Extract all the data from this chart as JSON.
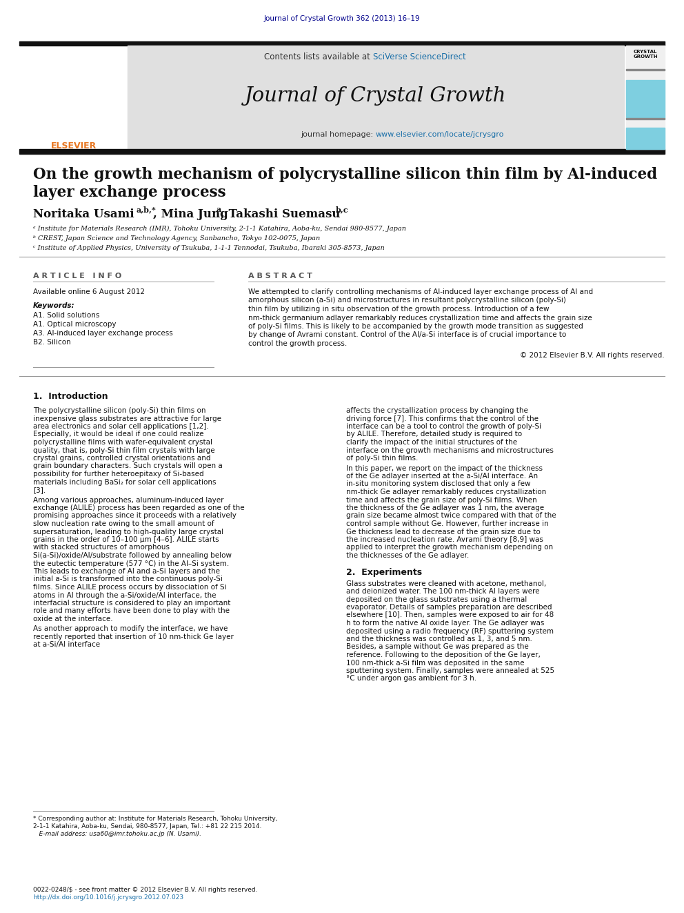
{
  "journal_ref": "Journal of Crystal Growth 362 (2013) 16–19",
  "journal_ref_color": "#00008B",
  "header_bg": "#E0E0E0",
  "header_text": "Contents lists available at ",
  "sciverse_text": "SciVerse ScienceDirect",
  "sciverse_color": "#1a6fa8",
  "journal_name": "Journal of Crystal Growth",
  "journal_homepage_label": "journal homepage: ",
  "journal_url": "www.elsevier.com/locate/jcrysgro",
  "journal_url_color": "#1a6fa8",
  "title_line1": "On the growth mechanism of polycrystalline silicon thin film by Al-induced",
  "title_line2": "layer exchange process",
  "author1": "Noritaka Usami",
  "author1_sup": "a,b,*",
  "author2": ", Mina Jung",
  "author2_sup": "a",
  "author3": ", Takashi Suemasu",
  "author3_sup": "b,c",
  "affil_a": "ᵃ Institute for Materials Research (IMR), Tohoku University, 2-1-1 Katahira, Aoba-ku, Sendai 980-8577, Japan",
  "affil_b": "ᵇ CREST, Japan Science and Technology Agency, Sanbancho, Tokyo 102-0075, Japan",
  "affil_c": "ᶜ Institute of Applied Physics, University of Tsukuba, 1-1-1 Tennodai, Tsukuba, Ibaraki 305-8573, Japan",
  "article_info_title": "A R T I C L E   I N F O",
  "abstract_title": "A B S T R A C T",
  "available_online": "Available online 6 August 2012",
  "keywords_title": "Keywords:",
  "keywords": [
    "A1. Solid solutions",
    "A1. Optical microscopy",
    "A3. Al-induced layer exchange process",
    "B2. Silicon"
  ],
  "abstract_text": "We attempted to clarify controlling mechanisms of Al-induced layer exchange process of Al and amorphous silicon (a-Si) and microstructures in resultant polycrystalline silicon (poly-Si) thin film by utilizing in situ observation of the growth process. Introduction of a few nm-thick germanium adlayer remarkably reduces crystallization time and affects the grain size of poly-Si films. This is likely to be accompanied by the growth mode transition as suggested by change of Avrami constant. Control of the Al/a-Si interface is of crucial importance to control the growth process.",
  "copyright_text": "© 2012 Elsevier B.V. All rights reserved.",
  "section1_title": "1.  Introduction",
  "col1_p1": "    The polycrystalline silicon (poly-Si) thin films on inexpensive glass substrates are attractive for large area electronics and solar cell applications [1,2]. Especially, it would be ideal if one could realize polycrystalline films with wafer-equivalent crystal quality, that is, poly-Si thin film crystals with large crystal grains, controlled crystal orientations and grain boundary characters. Such crystals will open a possibility for further heteroepitaxy of Si-based materials including BaSi₂ for solar cell applications [3].",
  "col1_p2": "    Among various approaches, aluminum-induced layer exchange (ALILE) process has been regarded as one of the promising approaches since it proceeds with a relatively slow nucleation rate owing to the small amount of supersaturation, leading to high-quality large crystal grains in the order of 10–100 μm [4–6]. ALILE starts with stacked structures of amorphous Si(a-Si)/oxide/Al/substrate followed by annealing below the eutectic temperature (577 °C) in the Al–Si system. This leads to exchange of Al and a-Si layers and the initial a-Si is transformed into the continuous poly-Si films. Since ALILE process occurs by dissociation of Si atoms in Al through the a-Si/oxide/Al interface, the interfacial structure is considered to play an important role and many efforts have been done to play with the oxide at the interface.",
  "col1_p3": "    As another approach to modify the interface, we have recently reported that insertion of 10 nm-thick Ge layer at a-Si/Al interface",
  "col2_p1": "affects the crystallization process by changing the driving force [7]. This confirms that the control of the interface can be a tool to control the growth of poly-Si by ALILE. Therefore, detailed study is required to clarify the impact of the initial structures of the interface on the growth mechanisms and microstructures of poly-Si thin films.",
  "col2_p2": "    In this paper, we report on the impact of the thickness of the Ge adlayer inserted at the a-Si/Al interface. An in-situ monitoring system disclosed that only a few nm-thick Ge adlayer remarkably reduces crystallization time and affects the grain size of poly-Si films. When the thickness of the Ge adlayer was 1 nm, the average grain size became almost twice compared with that of the control sample without Ge. However, further increase in Ge thickness lead to decrease of the grain size due to the increased nucleation rate. Avrami theory [8,9] was applied to interpret the growth mechanism depending on the thicknesses of the Ge adlayer.",
  "section2_title": "2.  Experiments",
  "col2_p3": "    Glass substrates were cleaned with acetone, methanol, and deionized water. The 100 nm-thick Al layers were deposited on the glass substrates using a thermal evaporator. Details of samples preparation are described elsewhere [10]. Then, samples were exposed to air for 48 h to form the native Al oxide layer. The Ge adlayer was deposited using a radio frequency (RF) sputtering system and the thickness was controlled as 1, 3, and 5 nm. Besides, a sample without Ge was prepared as the reference. Following to the deposition of the Ge layer, 100 nm-thick a-Si film was deposited in the same sputtering system. Finally, samples were annealed at 525 °C under argon gas ambient for 3 h.",
  "footnote1": "* Corresponding author at: Institute for Materials Research, Tohoku University,",
  "footnote2": "2-1-1 Katahira, Aoba-ku, Sendai, 980-8577, Japan, Tel.: +81 22 215 2014.",
  "footnote3": "   E-mail address: usa60@imr.tohoku.ac.jp (N. Usami).",
  "footer_bar": "0022-0248/$ - see front matter © 2012 Elsevier B.V. All rights reserved.",
  "footer_doi": "http://dx.doi.org/10.1016/j.jcrysgro.2012.07.023",
  "bg_color": "#ffffff",
  "link_color": "#1a6fa8",
  "text_color": "#111111",
  "gray_color": "#888888"
}
